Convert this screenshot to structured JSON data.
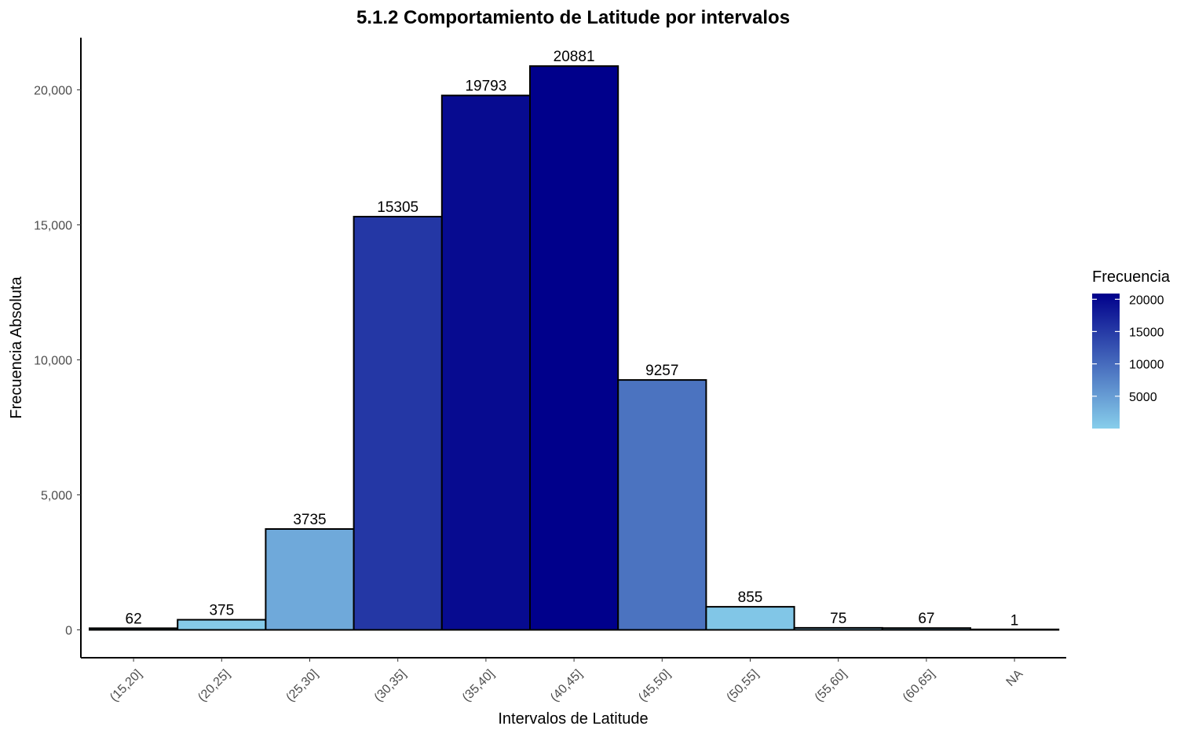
{
  "chart_data": {
    "type": "bar",
    "title": "5.1.2 Comportamiento de Latitude por intervalos",
    "xlabel": "Intervalos de Latitude",
    "ylabel": "Frecuencia Absoluta",
    "categories": [
      "(15,20]",
      "(20,25]",
      "(25,30]",
      "(30,35]",
      "(35,40]",
      "(40,45]",
      "(45,50]",
      "(50,55]",
      "(55,60]",
      "(60,65]",
      "NA"
    ],
    "values": [
      62,
      375,
      3735,
      15305,
      19793,
      20881,
      9257,
      855,
      75,
      67,
      1
    ],
    "value_labels": [
      "62",
      "375",
      "3735",
      "15305",
      "19793",
      "20881",
      "9257",
      "855",
      "75",
      "67",
      "1"
    ],
    "ylim": [
      -1000,
      23000
    ],
    "yticks": [
      0,
      5000,
      10000,
      15000,
      20000
    ],
    "ytick_labels": [
      "0",
      "5,000",
      "10,000",
      "15,000",
      "20,000"
    ],
    "grid": false,
    "legend": {
      "title": "Frecuencia",
      "position": "right",
      "type": "gradient",
      "range": [
        1,
        20881
      ],
      "ticks": [
        5000,
        10000,
        15000,
        20000
      ],
      "tick_labels": [
        "5000",
        "10000",
        "15000",
        "20000"
      ],
      "low_color": "#87ceeb",
      "high_color": "#00008b"
    }
  },
  "colors": {
    "bar_outline": "#000000",
    "fill_low": "#87ceeb",
    "fill_high": "#00008b",
    "axis": "#000000",
    "tick_text": "#4d4d4d"
  }
}
